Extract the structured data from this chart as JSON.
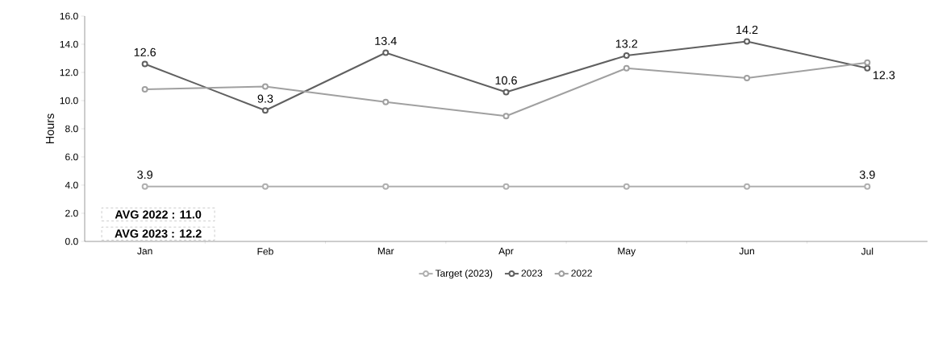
{
  "chart_data": {
    "type": "line",
    "ylabel": "Hours",
    "categories": [
      "Jan",
      "Feb",
      "Mar",
      "Apr",
      "May",
      "Jun",
      "Jul"
    ],
    "series": [
      {
        "name": "Target (2023)",
        "color": "#b0b0b0",
        "values": [
          3.9,
          3.9,
          3.9,
          3.9,
          3.9,
          3.9,
          3.9
        ],
        "value_labels": [
          "3.9",
          null,
          null,
          null,
          null,
          null,
          "3.9"
        ]
      },
      {
        "name": "2023",
        "color": "#606060",
        "values": [
          12.6,
          9.3,
          13.4,
          10.6,
          13.2,
          14.2,
          12.3
        ],
        "value_labels": [
          "12.6",
          "9.3",
          "13.4",
          "10.6",
          "13.2",
          "14.2",
          "12.3"
        ]
      },
      {
        "name": "2022",
        "color": "#a0a0a0",
        "values": [
          10.8,
          11.0,
          9.9,
          8.9,
          12.3,
          11.6,
          12.7
        ]
      }
    ],
    "ylim": [
      0,
      16
    ],
    "yticks": [
      {
        "value": 0,
        "label": "0.0"
      },
      {
        "value": 2,
        "label": "2.0"
      },
      {
        "value": 4,
        "label": "4.0"
      },
      {
        "value": 6,
        "label": "6.0"
      },
      {
        "value": 8,
        "label": "8.0"
      },
      {
        "value": 10,
        "label": "10.0"
      },
      {
        "value": 12,
        "label": "12.0"
      },
      {
        "value": 14,
        "label": "14.0"
      },
      {
        "value": 16,
        "label": "16.0"
      }
    ],
    "annotations": [
      "AVG 2022 : 11.0",
      "AVG 2023 : 12.2"
    ],
    "legend": "bottom",
    "marker": "circle",
    "line_style": "solid",
    "grid": false
  }
}
